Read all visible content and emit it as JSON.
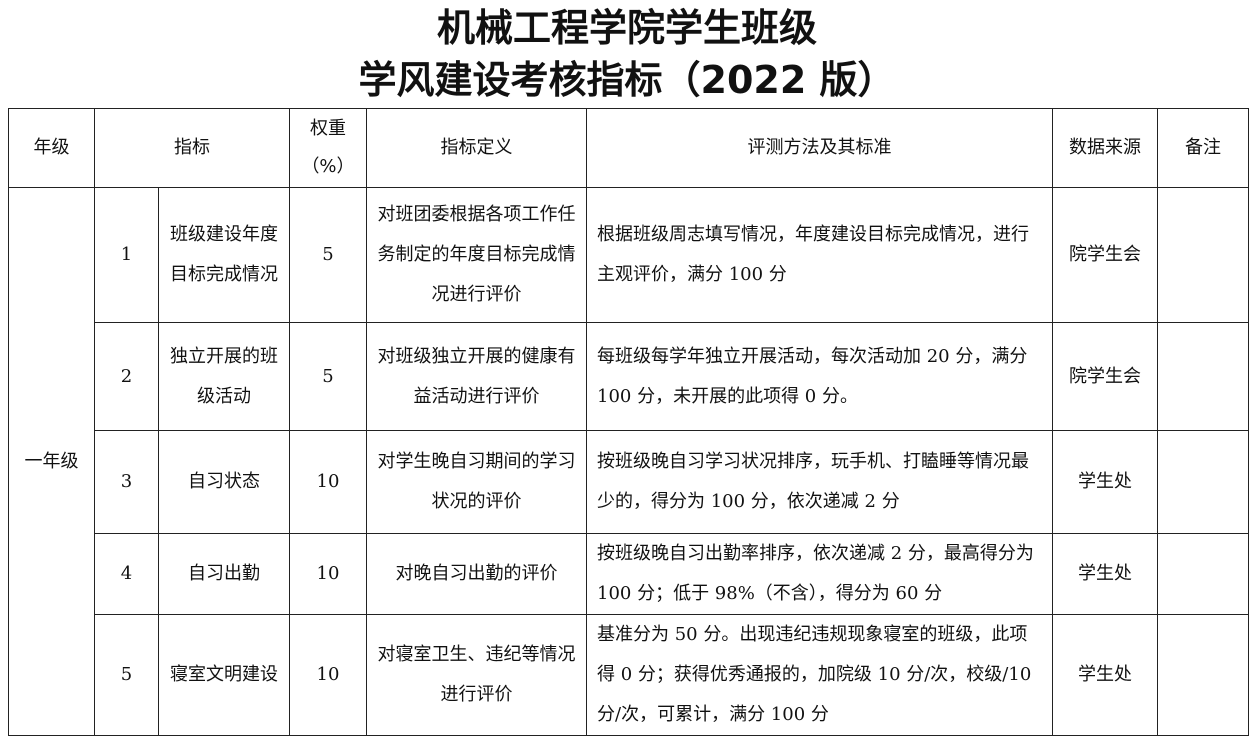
{
  "title": {
    "line1": "机械工程学院学生班级",
    "line2": "学风建设考核指标（2022 版）"
  },
  "headers": {
    "grade": "年级",
    "indicator": "指标",
    "weight": "权重",
    "weight_unit": "（%）",
    "definition": "指标定义",
    "method": "评测方法及其标准",
    "source": "数据来源",
    "remark": "备注"
  },
  "grade": "一年级",
  "rows": [
    {
      "no": "1",
      "name": "班级建设年度目标完成情况",
      "weight": "5",
      "definition": "对班团委根据各项工作任务制定的年度目标完成情况进行评价",
      "method": "根据班级周志填写情况，年度建设目标完成情况，进行主观评价，满分 100 分",
      "source": "院学生会",
      "remark": ""
    },
    {
      "no": "2",
      "name": "独立开展的班级活动",
      "weight": "5",
      "definition": "对班级独立开展的健康有益活动进行评价",
      "method": "每班级每学年独立开展活动，每次活动加 20 分，满分 100 分，未开展的此项得 0 分。",
      "source": "院学生会",
      "remark": ""
    },
    {
      "no": "3",
      "name": "自习状态",
      "weight": "10",
      "definition": "对学生晚自习期间的学习状况的评价",
      "method": "按班级晚自习学习状况排序，玩手机、打瞌睡等情况最少的，得分为 100 分，依次递减 2 分",
      "source": "学生处",
      "remark": ""
    },
    {
      "no": "4",
      "name": "自习出勤",
      "weight": "10",
      "definition": "对晚自习出勤的评价",
      "method": "按班级晚自习出勤率排序，依次递减 2 分，最高得分为 100 分；低于 98%（不含），得分为 60 分",
      "source": "学生处",
      "remark": ""
    },
    {
      "no": "5",
      "name": "寝室文明建设",
      "weight": "10",
      "definition": "对寝室卫生、违纪等情况进行评价",
      "method": "基准分为 50 分。出现违纪违规现象寝室的班级，此项得 0 分；获得优秀通报的，加院级 10 分/次，校级/10 分/次，可累计，满分 100 分",
      "source": "学生处",
      "remark": ""
    }
  ]
}
